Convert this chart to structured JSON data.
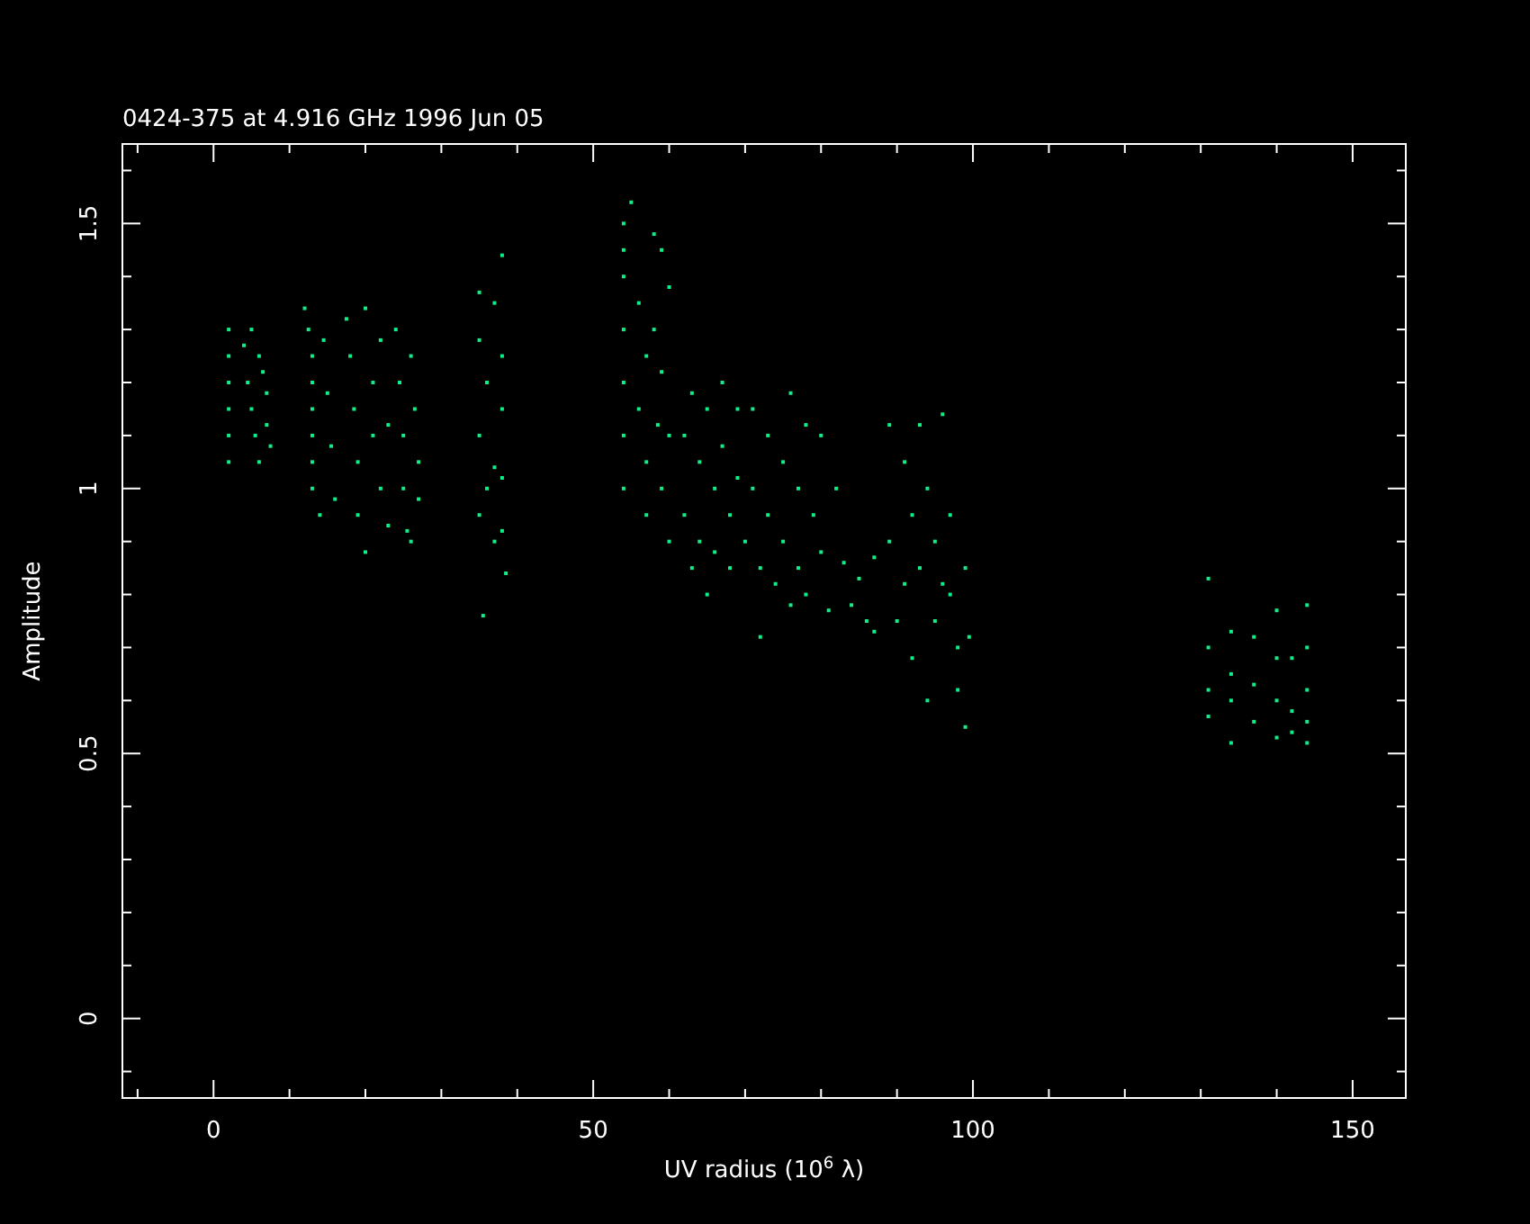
{
  "chart_data": {
    "type": "scatter",
    "title": "0424-375 at 4.916 GHz 1996 Jun 05",
    "xlabel": "UV radius  (10$^{6}$ λ)",
    "ylabel": "Amplitude",
    "marker": "square",
    "xlim": [
      -12,
      157
    ],
    "ylim": [
      -0.15,
      1.65
    ],
    "xticks": [
      {
        "value": -10,
        "label": null
      },
      0,
      {
        "value": 10,
        "label": null
      },
      {
        "value": 20,
        "label": null
      },
      {
        "value": 30,
        "label": null
      },
      {
        "value": 40,
        "label": null
      },
      50,
      {
        "value": 60,
        "label": null
      },
      {
        "value": 70,
        "label": null
      },
      {
        "value": 80,
        "label": null
      },
      {
        "value": 90,
        "label": null
      },
      100,
      {
        "value": 110,
        "label": null
      },
      {
        "value": 120,
        "label": null
      },
      {
        "value": 130,
        "label": null
      },
      {
        "value": 140,
        "label": null
      },
      150
    ],
    "yticks": [
      {
        "value": -0.1,
        "label": null
      },
      0,
      {
        "value": 0.1,
        "label": null
      },
      {
        "value": 0.2,
        "label": null
      },
      {
        "value": 0.3,
        "label": null
      },
      {
        "value": 0.4,
        "label": null
      },
      0.5,
      {
        "value": 0.6,
        "label": null
      },
      {
        "value": 0.7,
        "label": null
      },
      {
        "value": 0.8,
        "label": null
      },
      {
        "value": 0.9,
        "label": null
      },
      1,
      {
        "value": 1.1,
        "label": null
      },
      {
        "value": 1.2,
        "label": null
      },
      {
        "value": 1.3,
        "label": null
      },
      {
        "value": 1.4,
        "label": null
      },
      1.5,
      {
        "value": 1.6,
        "label": null
      }
    ],
    "series": [
      {
        "color": "#11ee88",
        "x": [
          2,
          2,
          2,
          2,
          2,
          2,
          4,
          4.5,
          5,
          5.5,
          6,
          6.5,
          7,
          7,
          7.5,
          6,
          5,
          12,
          12.5,
          13,
          13,
          13,
          13,
          13,
          13,
          14,
          14.5,
          15,
          15.5,
          16,
          17.5,
          18,
          18.5,
          19,
          19,
          20,
          20,
          21,
          21,
          22,
          22,
          23,
          23,
          24,
          24.5,
          25,
          25,
          25.5,
          26,
          26.5,
          27,
          27,
          26,
          35,
          35,
          35,
          35,
          35.5,
          36,
          36,
          37,
          37,
          37,
          38,
          38,
          38,
          38,
          38,
          38.5,
          54,
          54,
          54,
          54,
          54,
          54,
          54,
          55,
          56,
          56,
          57,
          57,
          57,
          58,
          58,
          58.5,
          59,
          59,
          59,
          60,
          60,
          60,
          62,
          62,
          63,
          63,
          64,
          64,
          65,
          65,
          66,
          66,
          67,
          67,
          68,
          68,
          69,
          69,
          70,
          71,
          71,
          72,
          72,
          73,
          73,
          74,
          75,
          75,
          76,
          76,
          77,
          77,
          78,
          78,
          79,
          80,
          80,
          81,
          82,
          83,
          84,
          85,
          86,
          87,
          87,
          89,
          89,
          90,
          91,
          91,
          92,
          92,
          93,
          93,
          94,
          94,
          95,
          95,
          96,
          96,
          97,
          97,
          98,
          98,
          99,
          99,
          99.5,
          131,
          131,
          131,
          131,
          134,
          134,
          134,
          134,
          137,
          137,
          137,
          140,
          140,
          140,
          140,
          142,
          142,
          142,
          144,
          144,
          144,
          144,
          144
        ],
        "values": [
          1.3,
          1.25,
          1.2,
          1.15,
          1.1,
          1.05,
          1.27,
          1.2,
          1.15,
          1.1,
          1.05,
          1.22,
          1.18,
          1.12,
          1.08,
          1.25,
          1.3,
          1.34,
          1.3,
          1.25,
          1.2,
          1.15,
          1.1,
          1.05,
          1.0,
          0.95,
          1.28,
          1.18,
          1.08,
          0.98,
          1.32,
          1.25,
          1.15,
          1.05,
          0.95,
          0.88,
          1.34,
          1.2,
          1.1,
          1.0,
          1.28,
          1.12,
          0.93,
          1.3,
          1.2,
          1.1,
          1.0,
          0.92,
          1.25,
          1.15,
          1.05,
          0.98,
          0.9,
          1.37,
          1.28,
          1.1,
          0.95,
          0.76,
          1.2,
          1.0,
          1.04,
          0.9,
          1.35,
          1.44,
          1.25,
          1.15,
          1.02,
          0.92,
          0.84,
          1.5,
          1.45,
          1.4,
          1.3,
          1.2,
          1.1,
          1.0,
          1.54,
          1.35,
          1.15,
          1.25,
          1.05,
          0.95,
          1.48,
          1.3,
          1.12,
          1.45,
          1.22,
          1.0,
          1.38,
          1.1,
          0.9,
          1.1,
          0.95,
          1.18,
          0.85,
          1.05,
          0.9,
          1.15,
          0.8,
          1.0,
          0.88,
          1.2,
          1.08,
          0.95,
          0.85,
          1.15,
          1.02,
          0.9,
          1.15,
          1.0,
          0.85,
          0.72,
          1.1,
          0.95,
          0.82,
          1.05,
          0.9,
          1.18,
          0.78,
          1.0,
          0.85,
          1.12,
          0.8,
          0.95,
          1.1,
          0.88,
          0.77,
          1.0,
          0.86,
          0.78,
          0.83,
          0.75,
          0.87,
          0.73,
          1.12,
          0.9,
          0.75,
          1.05,
          0.82,
          0.95,
          0.68,
          1.12,
          0.85,
          0.6,
          1.0,
          0.9,
          0.75,
          1.14,
          0.82,
          0.95,
          0.8,
          0.7,
          0.62,
          0.85,
          0.55,
          0.72,
          0.83,
          0.7,
          0.62,
          0.57,
          0.73,
          0.65,
          0.6,
          0.52,
          0.72,
          0.63,
          0.56,
          0.77,
          0.68,
          0.6,
          0.53,
          0.68,
          0.58,
          0.54,
          0.78,
          0.7,
          0.62,
          0.56,
          0.52
        ]
      }
    ]
  }
}
